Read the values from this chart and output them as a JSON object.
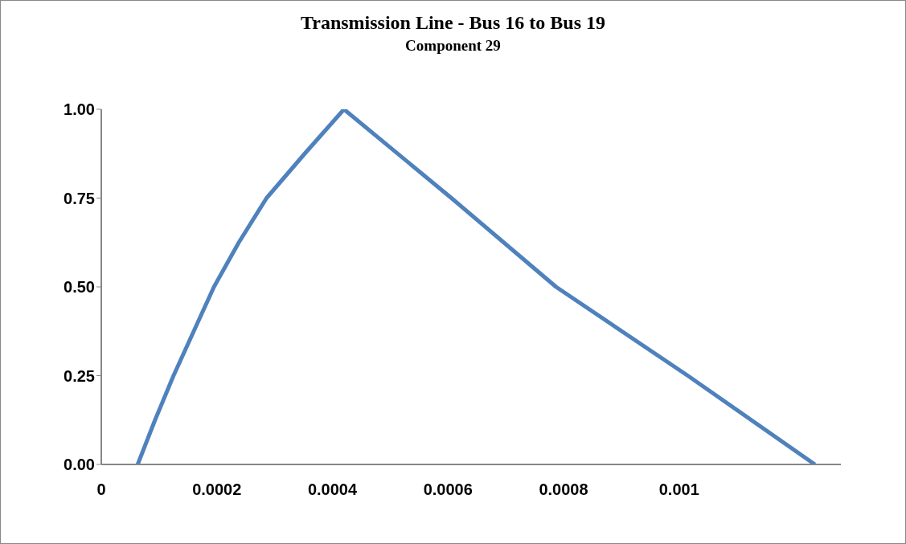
{
  "chart_data": {
    "type": "line",
    "title": "Transmission Line - Bus 16 to Bus 19",
    "subtitle": "Component 29",
    "series": [
      {
        "color": "#4f81bd",
        "x": [
          6.3e-05,
          9.3e-05,
          0.000125,
          0.00016,
          0.000195,
          0.000238,
          0.000286,
          0.000352,
          0.00042,
          0.000606,
          0.000787,
          0.001015,
          0.001235
        ],
        "values": [
          0,
          0.125,
          0.25,
          0.375,
          0.5,
          0.625,
          0.75,
          0.875,
          1,
          0.75,
          0.5,
          0.25,
          0
        ]
      }
    ],
    "xlim": [
      0,
      0.00128
    ],
    "xticks": [
      0,
      0.0002,
      0.0004,
      0.0006,
      0.0008,
      0.001
    ],
    "ylim": [
      0,
      1
    ],
    "yticks": [
      {
        "value": 0,
        "label": "0.00"
      },
      {
        "value": 0.25,
        "label": "0.25"
      },
      {
        "value": 0.5,
        "label": "0.50"
      },
      {
        "value": 0.75,
        "label": "0.75"
      },
      {
        "value": 1,
        "label": "1.00"
      }
    ],
    "grid": false,
    "legend": false,
    "marker": "none",
    "line_style": "solid"
  }
}
